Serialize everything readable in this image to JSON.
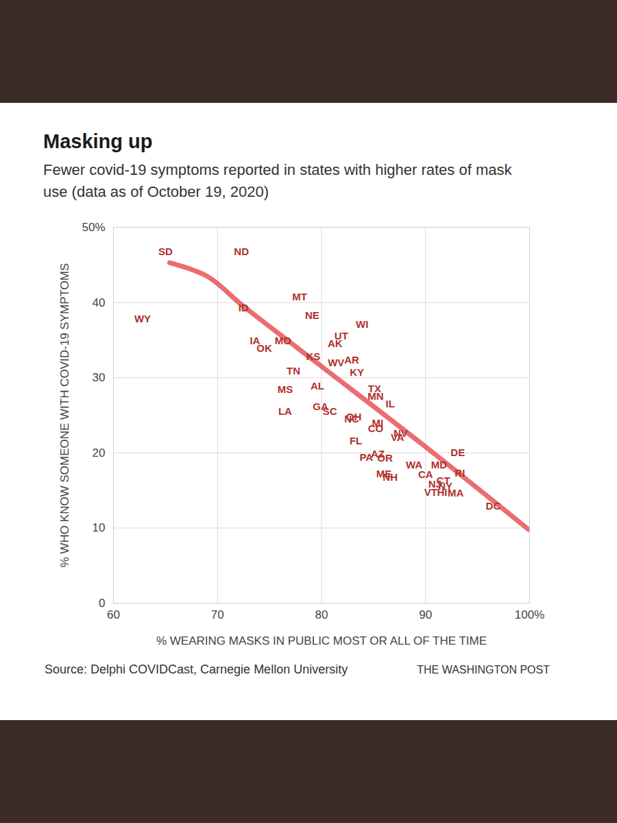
{
  "chart_data": {
    "type": "scatter",
    "title": "Masking up",
    "subtitle": "Fewer covid-19 symptoms reported in states with higher rates of mask use (data as of October 19, 2020)",
    "x_label": "% WEARING MASKS IN PUBLIC MOST OR ALL OF THE TIME",
    "y_label": "% WHO KNOW SOMEONE WITH COVID-19 SYMPTOMS",
    "caption": "Source: Delphi COVIDCast, Carnegie Mellon University",
    "credit": "THE WASHINGTON POST",
    "xlim": [
      60,
      100
    ],
    "xticks": [
      60,
      70,
      80,
      90,
      {
        "value": 100,
        "label": "100%"
      }
    ],
    "ylim": [
      0,
      50
    ],
    "yticks": [
      0,
      10,
      20,
      30,
      40,
      {
        "value": 50,
        "label": "50%"
      }
    ],
    "grid": true,
    "series": [
      {
        "type": "scatter",
        "marker": "text",
        "color": "#b0302a",
        "labels": [
          "SD",
          "ND",
          "WY",
          "MT",
          "ID",
          "NE",
          "WI",
          "UT",
          "AK",
          "IA",
          "OK",
          "MO",
          "KS",
          "WV",
          "AR",
          "KY",
          "TN",
          "AL",
          "MS",
          "TX",
          "MN",
          "IL",
          "LA",
          "GA",
          "SC",
          "OH",
          "NC",
          "MI",
          "CO",
          "NV",
          "VA",
          "FL",
          "PA",
          "AZ",
          "OR",
          "ME",
          "NH",
          "WA",
          "CA",
          "MD",
          "DE",
          "RI",
          "CT",
          "NJ",
          "NY",
          "VT",
          "HI",
          "MA",
          "DC"
        ],
        "x": [
          65.0,
          72.3,
          62.8,
          77.9,
          72.5,
          79.1,
          83.9,
          81.9,
          81.3,
          73.6,
          74.5,
          76.3,
          79.2,
          81.4,
          82.9,
          83.4,
          77.3,
          79.6,
          76.5,
          85.1,
          85.2,
          86.6,
          76.5,
          79.9,
          80.8,
          83.1,
          82.9,
          85.4,
          85.2,
          87.6,
          87.3,
          83.3,
          84.3,
          85.4,
          86.1,
          86.0,
          86.6,
          88.9,
          90.0,
          91.3,
          93.1,
          93.3,
          91.7,
          90.9,
          91.9,
          90.5,
          91.6,
          92.9,
          96.5
        ],
        "values": [
          46.7,
          46.7,
          37.8,
          40.7,
          39.3,
          38.3,
          37.1,
          35.5,
          34.5,
          34.9,
          33.9,
          34.9,
          32.8,
          32.0,
          32.3,
          30.7,
          30.9,
          28.9,
          28.4,
          28.5,
          27.5,
          26.5,
          25.5,
          26.1,
          25.5,
          24.8,
          24.5,
          23.9,
          23.2,
          22.6,
          22.0,
          21.6,
          19.4,
          19.8,
          19.3,
          17.2,
          16.7,
          18.4,
          17.1,
          18.4,
          20.0,
          17.3,
          16.3,
          15.8,
          15.5,
          14.7,
          14.7,
          14.6,
          12.9
        ]
      },
      {
        "type": "line",
        "color": "#e5484d",
        "x": [
          65.4,
          69,
          72.5,
          80,
          90,
          99.9
        ],
        "values": [
          45.3,
          43.5,
          39.5,
          31.5,
          20.8,
          9.8
        ]
      }
    ]
  }
}
